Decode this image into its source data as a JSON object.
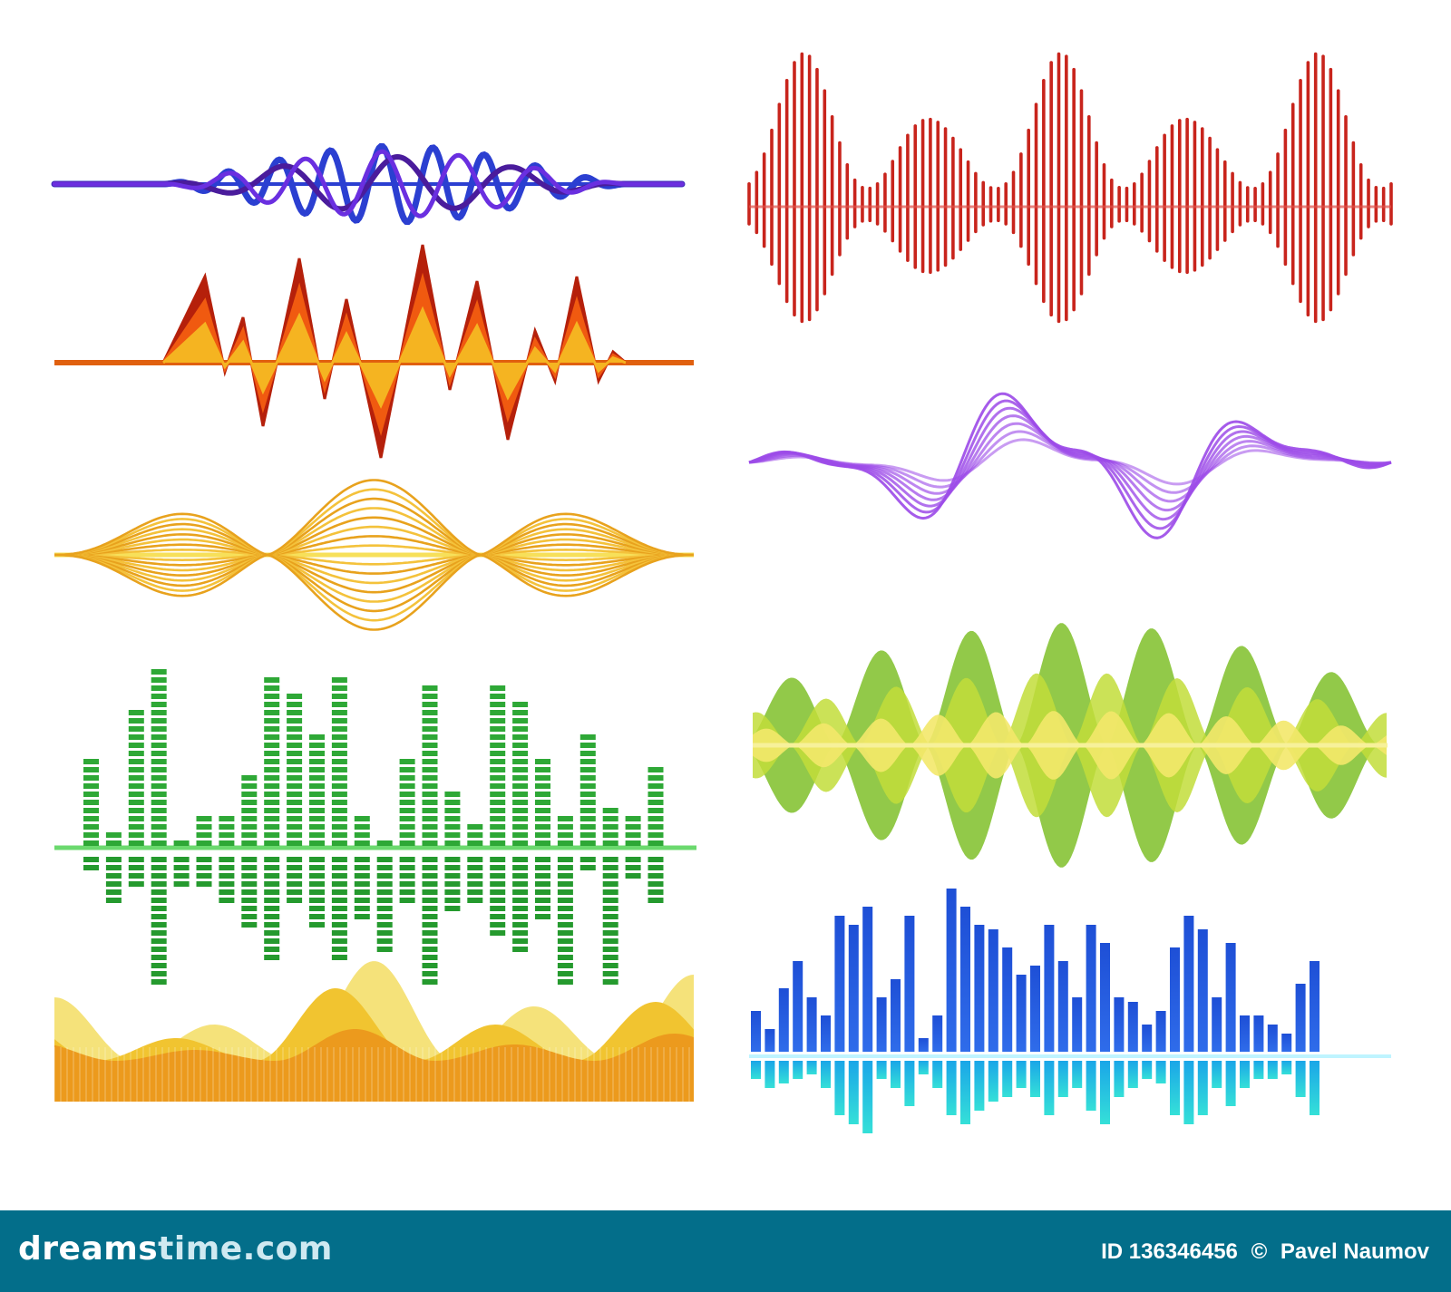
{
  "colors": {
    "footer_bg": "#036e8a",
    "blue_wave": [
      "#2b3fd1",
      "#4a1c9c",
      "#6a2fe0"
    ],
    "red_wave": "#c8241c",
    "orange_zigzag": [
      "#b5200b",
      "#f05a10",
      "#f5b421"
    ],
    "purple_wave": "#9c4be8",
    "yellow_lens": [
      "#f4c23b",
      "#e8a21d",
      "#f7e05a"
    ],
    "green_blobs": [
      "#8cc63f",
      "#c2dd3a",
      "#f3e86a"
    ],
    "green_eq": "#2ea836",
    "blue_eq": [
      "#1e4fd6",
      "#1aa6e8",
      "#35e0d8"
    ],
    "yellow_area": [
      "#f5e27a",
      "#f1c430",
      "#ec9a1d"
    ]
  },
  "waveforms": [
    {
      "icon": "sine-lines-wave-icon"
    },
    {
      "icon": "spike-wave-icon"
    },
    {
      "icon": "zigzag-wave-icon"
    },
    {
      "icon": "layered-curve-wave-icon"
    },
    {
      "icon": "lens-wave-icon"
    },
    {
      "icon": "blob-wave-icon"
    },
    {
      "icon": "segmented-equalizer-icon"
    },
    {
      "icon": "bar-equalizer-icon"
    },
    {
      "icon": "area-wave-icon"
    }
  ],
  "footer": {
    "logo_prefix": "dreams",
    "logo_suffix": "time.com",
    "image_id": "ID 136346456",
    "copyright": "©",
    "author": "Pavel Naumov"
  }
}
